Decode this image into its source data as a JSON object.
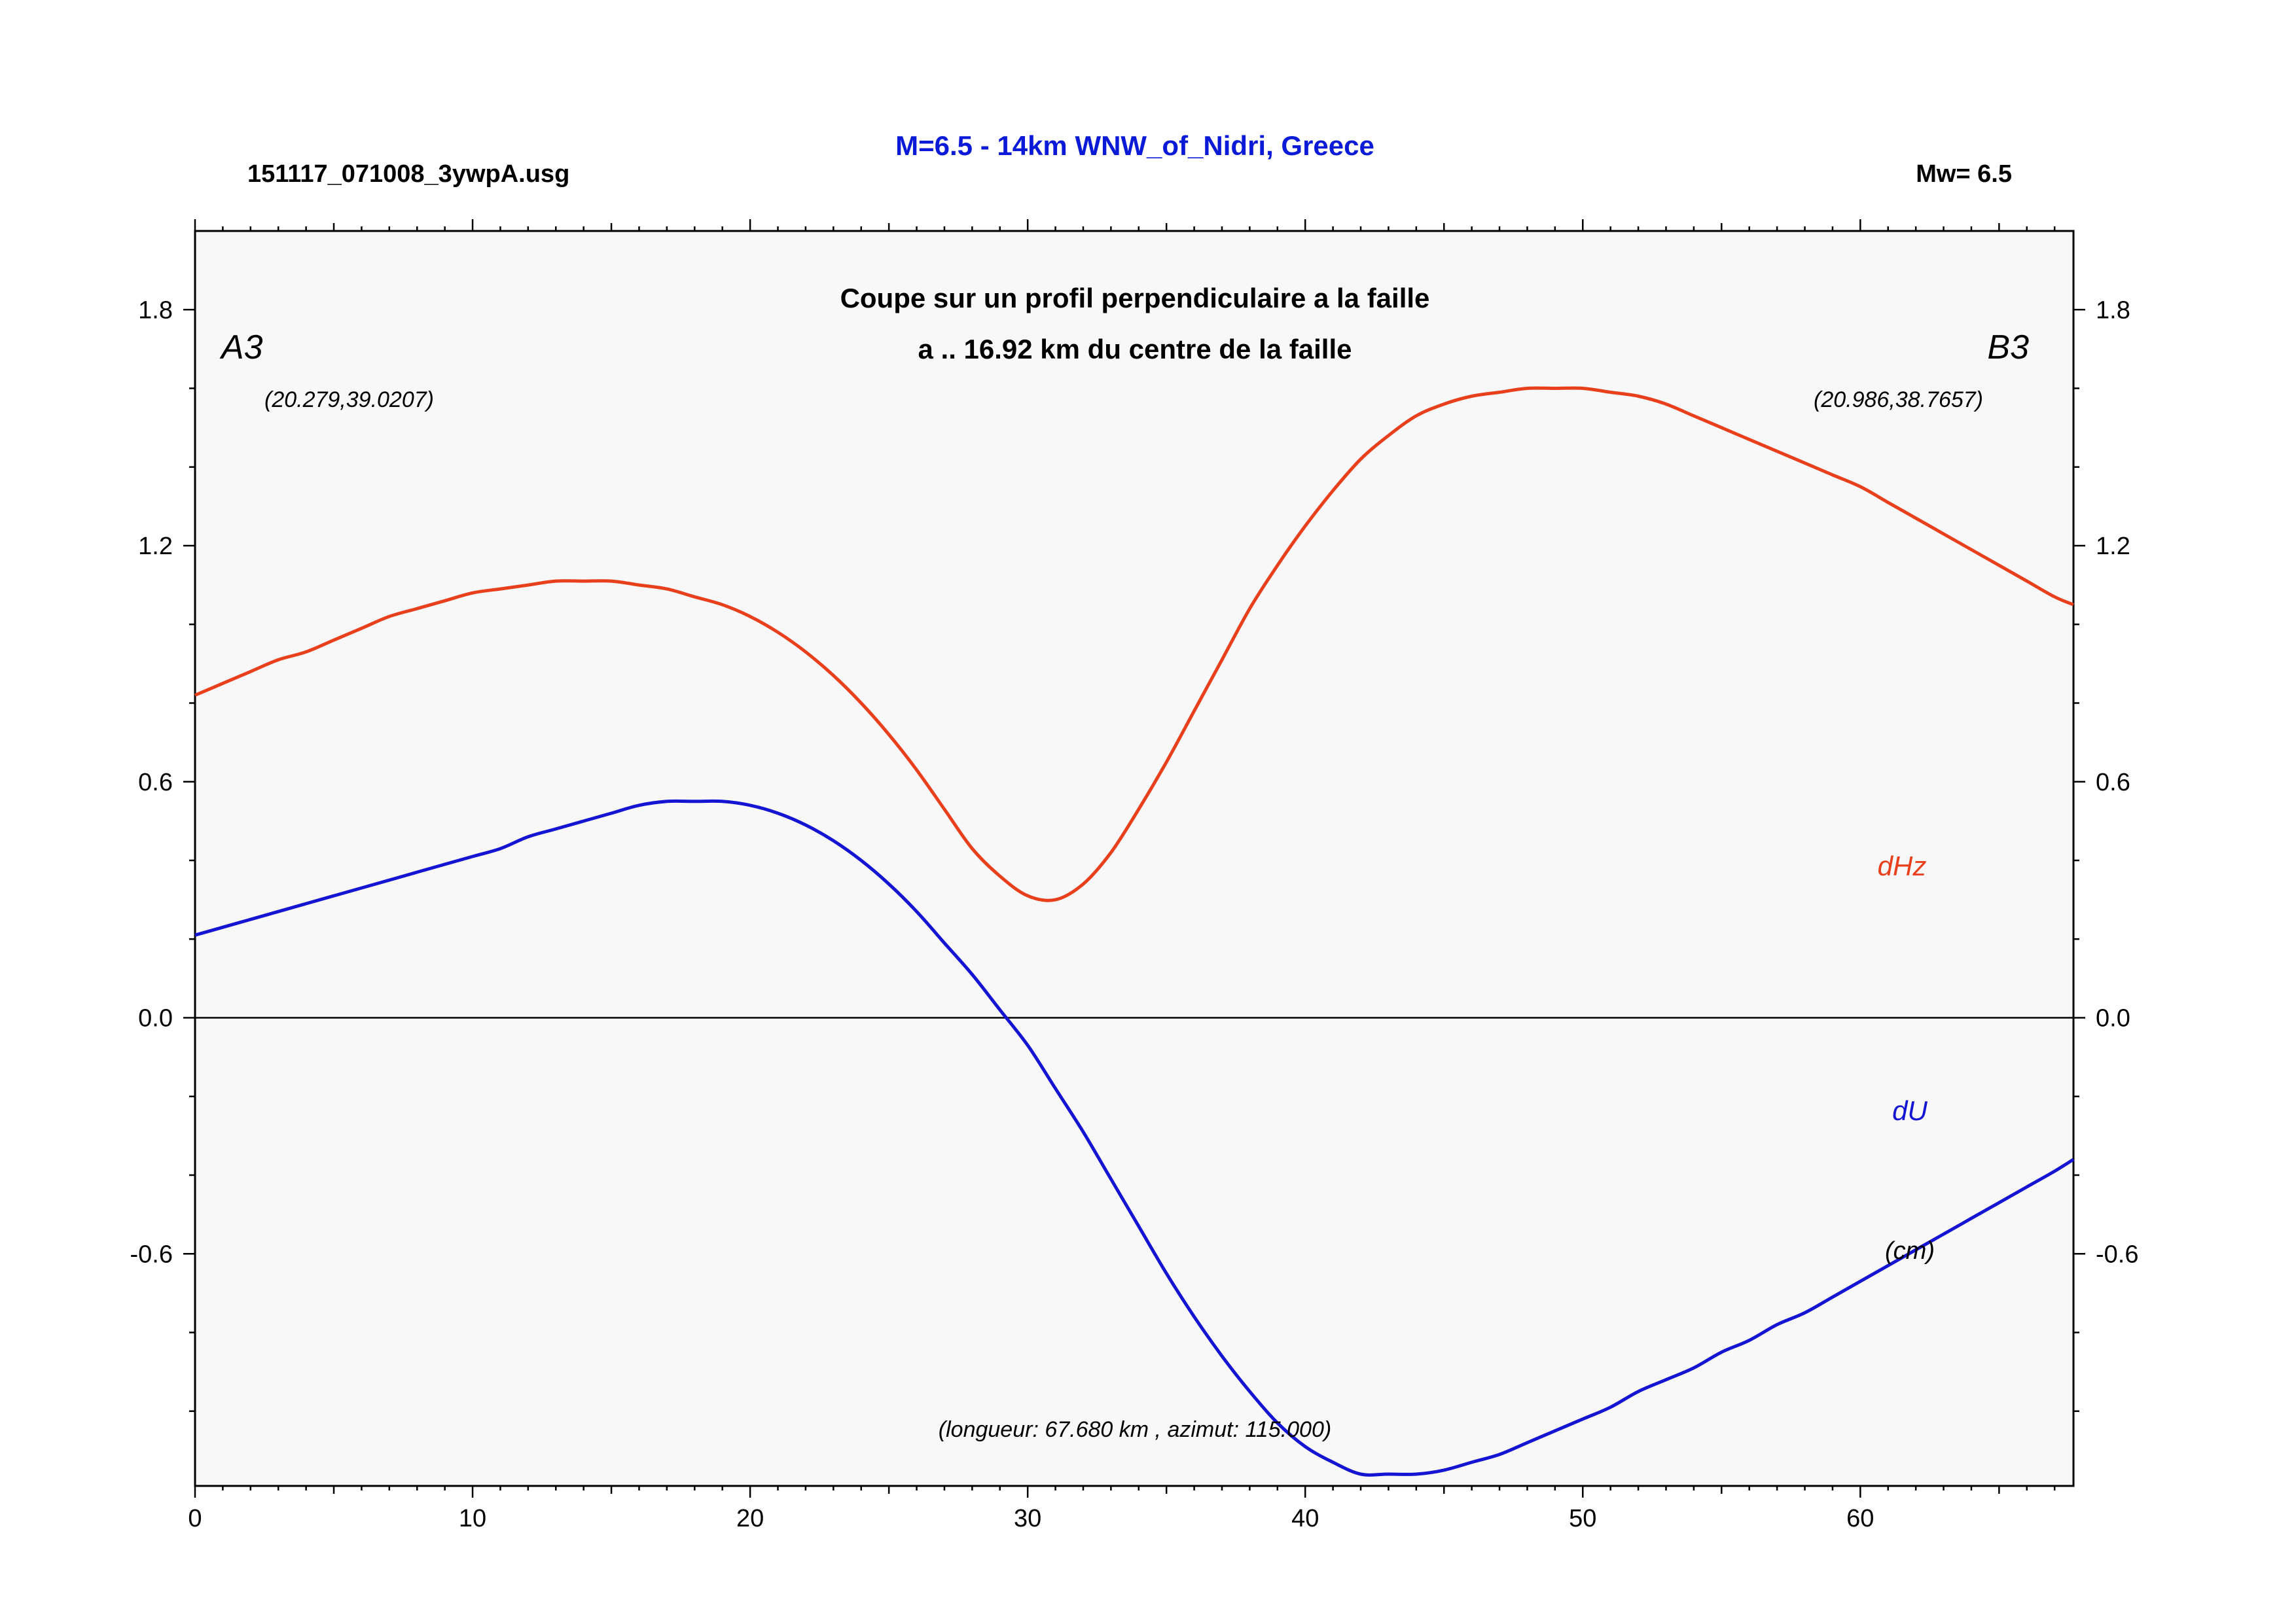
{
  "header": {
    "filename": "151117_071008_3ywpA.usg",
    "title": "M=6.5 - 14km WNW_of_Nidri, Greece",
    "magnitude": "Mw= 6.5"
  },
  "colors": {
    "title": "#0a1ad6",
    "dHz": "#e8401c",
    "dU": "#1414d2",
    "plot_bg": "#f8f8f8"
  },
  "chart_data": {
    "type": "line",
    "title": "Coupe sur un profil perpendiculaire a la faille",
    "subtitle": "a .. 16.92 km du centre de la faille",
    "xlim": [
      0,
      67.68
    ],
    "ylim": [
      -1.19,
      2.0
    ],
    "x_ticks": [
      "0",
      "10",
      "20",
      "30",
      "40",
      "50",
      "60"
    ],
    "x_tick_values": [
      0,
      10,
      20,
      30,
      40,
      50,
      60
    ],
    "y_ticks": [
      "1.8",
      "1.2",
      "0.6",
      "0.0",
      "-0.6"
    ],
    "y_tick_values": [
      1.8,
      1.2,
      0.6,
      0.0,
      -0.6
    ],
    "grid": false,
    "zero_line": true,
    "point_a": {
      "label": "A3",
      "coords": "(20.279,39.0207)"
    },
    "point_b": {
      "label": "B3",
      "coords": "(20.986,38.7657)"
    },
    "length_azimuth": "(longueur: 67.680 km , azimut: 115.000)",
    "units": "(cm)",
    "series": [
      {
        "name": "dHz",
        "x": [
          0,
          1,
          2,
          3,
          4,
          5,
          6,
          7,
          8,
          9,
          10,
          11,
          12,
          13,
          14,
          15,
          16,
          17,
          18,
          19,
          20,
          21,
          22,
          23,
          24,
          25,
          26,
          27,
          28,
          29,
          30,
          31,
          32,
          33,
          34,
          35,
          36,
          37,
          38,
          39,
          40,
          41,
          42,
          43,
          44,
          45,
          46,
          47,
          48,
          49,
          50,
          51,
          52,
          53,
          54,
          55,
          56,
          57,
          58,
          59,
          60,
          61,
          62,
          63,
          64,
          65,
          66,
          67,
          67.68
        ],
        "values": [
          0.82,
          0.85,
          0.88,
          0.91,
          0.93,
          0.96,
          0.99,
          1.02,
          1.04,
          1.06,
          1.08,
          1.09,
          1.1,
          1.11,
          1.11,
          1.11,
          1.1,
          1.09,
          1.07,
          1.05,
          1.02,
          0.98,
          0.93,
          0.87,
          0.8,
          0.72,
          0.63,
          0.53,
          0.43,
          0.36,
          0.31,
          0.3,
          0.34,
          0.42,
          0.53,
          0.65,
          0.78,
          0.91,
          1.04,
          1.15,
          1.25,
          1.34,
          1.42,
          1.48,
          1.53,
          1.56,
          1.58,
          1.59,
          1.6,
          1.6,
          1.6,
          1.59,
          1.58,
          1.56,
          1.53,
          1.5,
          1.47,
          1.44,
          1.41,
          1.38,
          1.35,
          1.31,
          1.27,
          1.23,
          1.19,
          1.15,
          1.11,
          1.07,
          1.05
        ]
      },
      {
        "name": "dU",
        "x": [
          0,
          1,
          2,
          3,
          4,
          5,
          6,
          7,
          8,
          9,
          10,
          11,
          12,
          13,
          14,
          15,
          16,
          17,
          18,
          19,
          20,
          21,
          22,
          23,
          24,
          25,
          26,
          27,
          28,
          29,
          30,
          31,
          32,
          33,
          34,
          35,
          36,
          37,
          38,
          39,
          40,
          41,
          42,
          43,
          44,
          45,
          46,
          47,
          48,
          49,
          50,
          51,
          52,
          53,
          54,
          55,
          56,
          57,
          58,
          59,
          60,
          61,
          62,
          63,
          64,
          65,
          66,
          67,
          67.68
        ],
        "values": [
          0.21,
          0.23,
          0.25,
          0.27,
          0.29,
          0.31,
          0.33,
          0.35,
          0.37,
          0.39,
          0.41,
          0.43,
          0.46,
          0.48,
          0.5,
          0.52,
          0.54,
          0.55,
          0.55,
          0.55,
          0.54,
          0.52,
          0.49,
          0.45,
          0.4,
          0.34,
          0.27,
          0.19,
          0.11,
          0.02,
          -0.07,
          -0.18,
          -0.29,
          -0.41,
          -0.53,
          -0.65,
          -0.76,
          -0.86,
          -0.95,
          -1.03,
          -1.09,
          -1.13,
          -1.16,
          -1.16,
          -1.16,
          -1.15,
          -1.13,
          -1.11,
          -1.08,
          -1.05,
          -1.02,
          -0.99,
          -0.95,
          -0.92,
          -0.89,
          -0.85,
          -0.82,
          -0.78,
          -0.75,
          -0.71,
          -0.67,
          -0.63,
          -0.59,
          -0.55,
          -0.51,
          -0.47,
          -0.43,
          -0.39,
          -0.36
        ]
      }
    ]
  }
}
